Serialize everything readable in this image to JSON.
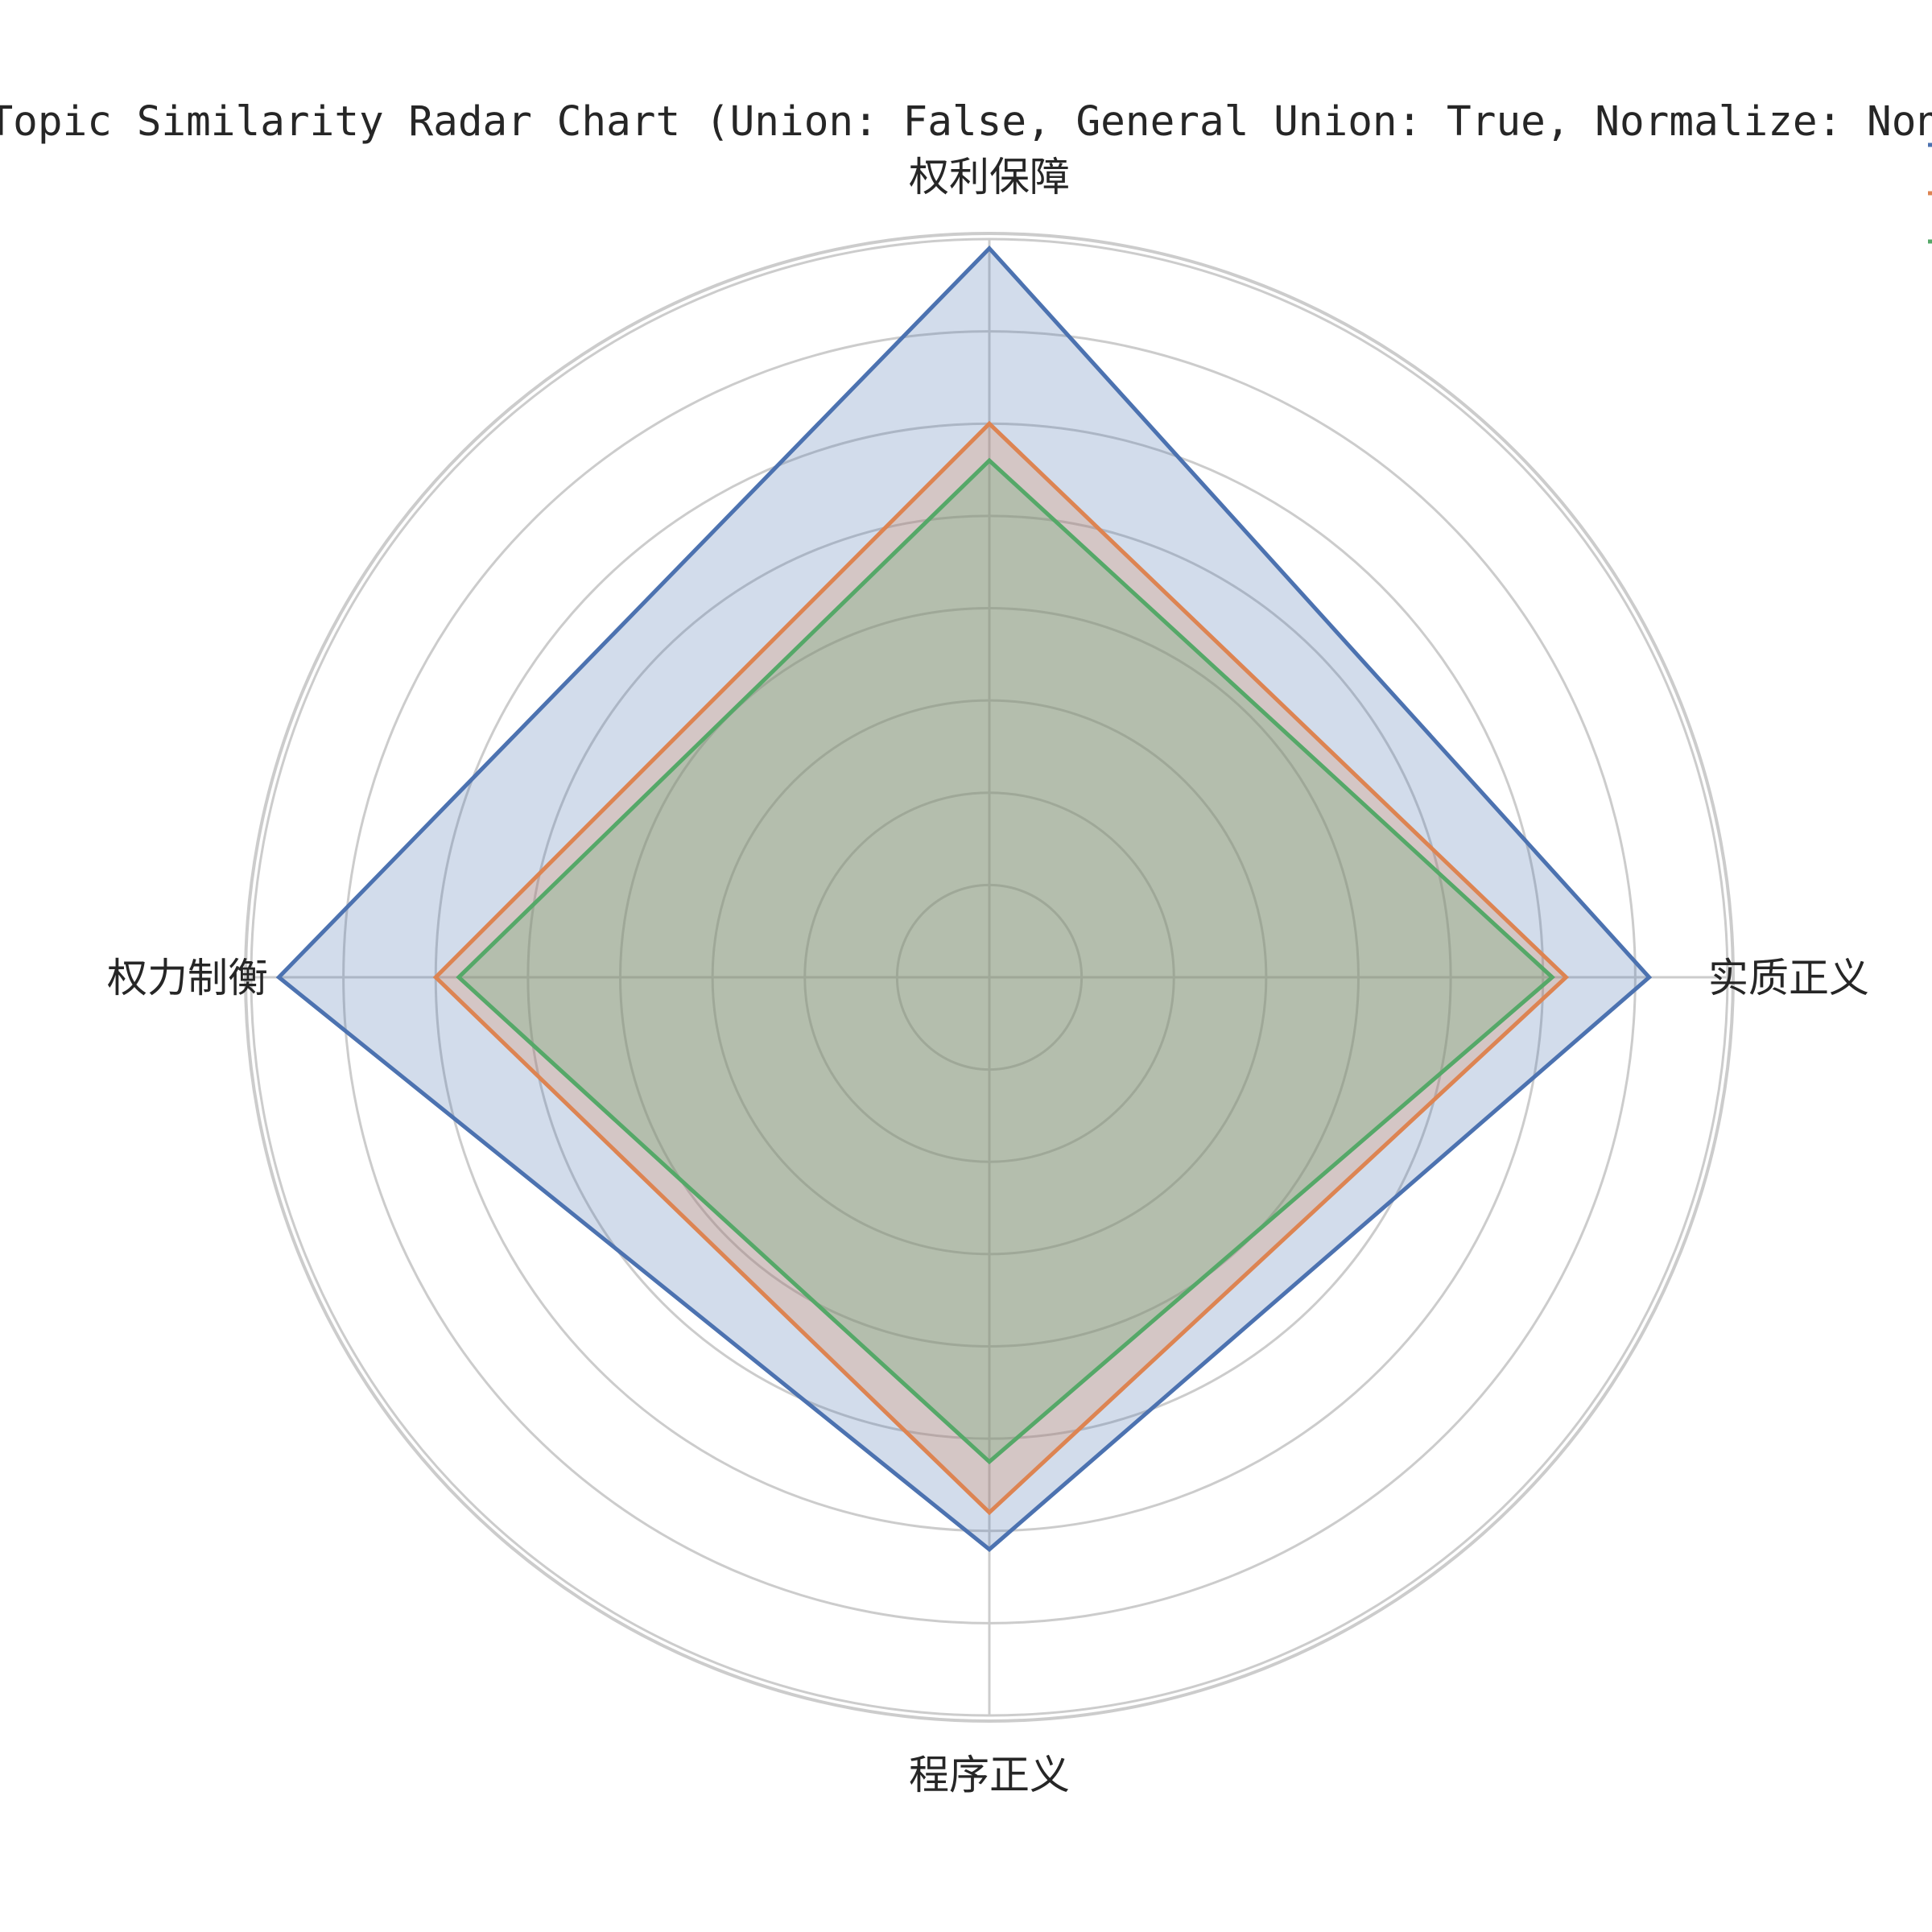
{
  "chart_data": {
    "type": "radar",
    "title": "Topic Similarity Radar Chart (Union: False, General Union: True, Normalize: None)",
    "categories": [
      "权利保障",
      "实质正义",
      "程序正义",
      "权力制衡"
    ],
    "rmax": 0.8,
    "grid_rings": [
      0.1,
      0.2,
      0.3,
      0.4,
      0.5,
      0.6,
      0.7,
      0.8
    ],
    "grid": true,
    "legend_position": "top-right",
    "series": [
      {
        "color": "#4c72b0",
        "values": [
          0.79,
          0.715,
          0.62,
          0.77
        ]
      },
      {
        "color": "#dd8452",
        "values": [
          0.6,
          0.625,
          0.58,
          0.6
        ]
      },
      {
        "color": "#55a868",
        "values": [
          0.56,
          0.61,
          0.525,
          0.575
        ]
      }
    ]
  }
}
